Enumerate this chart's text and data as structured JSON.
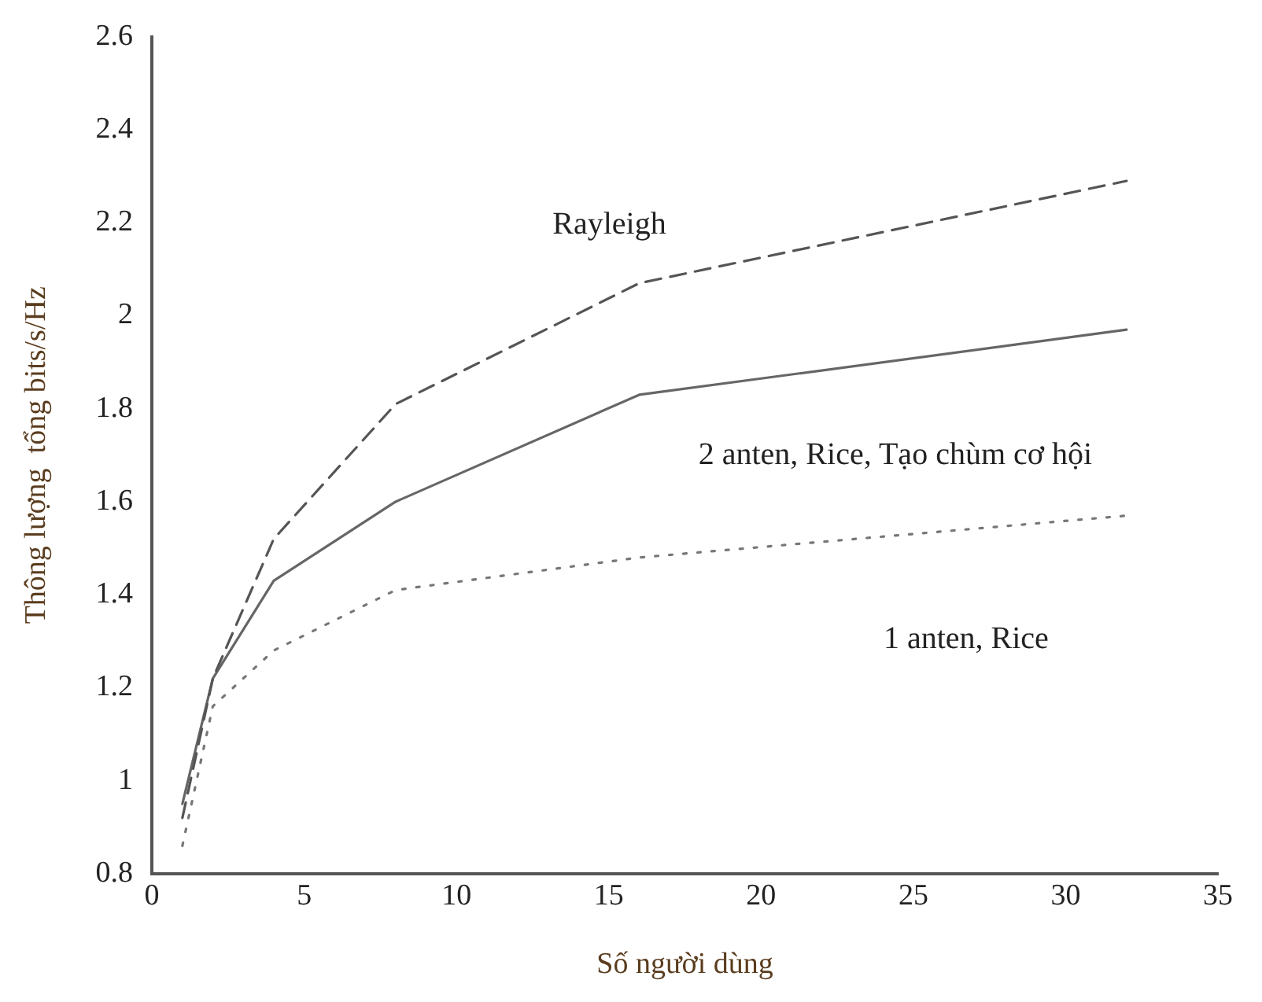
{
  "chart_data": {
    "type": "line",
    "xlabel": "Số người dùng",
    "ylabel": "Thông lượng  tổng bits/s/Hz",
    "xlim": [
      0,
      35
    ],
    "xticks": [
      0,
      5,
      10,
      15,
      20,
      25,
      30,
      35
    ],
    "ylim": [
      0.8,
      2.6
    ],
    "yticks": [
      0.8,
      1,
      1.2,
      1.4,
      1.6,
      1.8,
      2,
      2.2,
      2.4,
      2.6
    ],
    "grid": false,
    "legend": false,
    "marker": "none",
    "series": [
      {
        "name": "Rayleigh",
        "color": "#555555",
        "line_style": "dashed",
        "x": [
          1,
          2,
          4,
          8,
          16,
          32
        ],
        "values": [
          0.92,
          1.22,
          1.52,
          1.81,
          2.07,
          2.29
        ]
      },
      {
        "name": "2 anten, Rice, Tạo chùm cơ hội",
        "color": "#666666",
        "line_style": "solid",
        "x": [
          1,
          2,
          4,
          8,
          16,
          32
        ],
        "values": [
          0.95,
          1.22,
          1.43,
          1.6,
          1.83,
          1.97
        ]
      },
      {
        "name": "1 anten, Rice",
        "color": "#777777",
        "line_style": "dotted",
        "x": [
          1,
          2,
          4,
          8,
          16,
          32
        ],
        "values": [
          0.86,
          1.16,
          1.28,
          1.41,
          1.48,
          1.57
        ]
      }
    ]
  }
}
